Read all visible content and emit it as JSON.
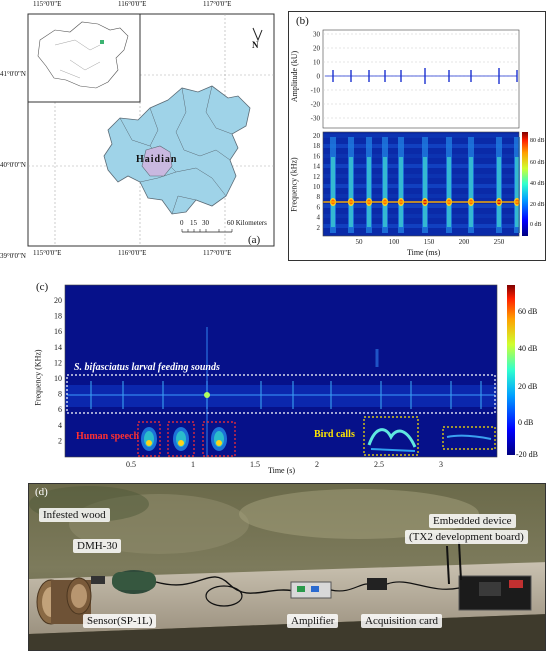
{
  "panel_a": {
    "label": "(a)",
    "lon_ticks": [
      "115°0'0\"E",
      "116°0'0\"E",
      "117°0'0\"E"
    ],
    "lat_ticks": [
      "41°0'0\"N",
      "40°0'0\"N",
      "39°0'0\"N"
    ],
    "district": "Haidian",
    "north": "N",
    "scale_numbers": [
      "0",
      "15",
      "30",
      "60 Kilometers"
    ],
    "colors": {
      "region": "#9fd3e8",
      "highlight": "#c9b8e0",
      "border": "#5a6a75"
    }
  },
  "panel_b": {
    "label": "(b)",
    "waveform_ylabel": "Amplitude (kU)",
    "waveform_yticks": [
      "30",
      "20",
      "10",
      "0",
      "-10",
      "-20",
      "-30"
    ],
    "spec_ylabel": "Frequency (kHz)",
    "spec_yticks": [
      "20",
      "18",
      "16",
      "14",
      "12",
      "10",
      "8",
      "6",
      "4",
      "2"
    ],
    "xlabel": "Time (ms)",
    "xticks": [
      "50",
      "100",
      "150",
      "200",
      "250"
    ],
    "colorbar_ticks": [
      "80 dB",
      "60 dB",
      "40 dB",
      "20 dB",
      "0 dB"
    ]
  },
  "panel_c": {
    "label": "(c)",
    "ylabel": "Frequency (KHz)",
    "yticks": [
      "20",
      "18",
      "16",
      "14",
      "12",
      "10",
      "8",
      "6",
      "4",
      "2"
    ],
    "xlabel": "Time (s)",
    "xticks": [
      "0.5",
      "1",
      "1.5",
      "2",
      "2.5",
      "3"
    ],
    "colorbar_ticks": [
      "60 dB",
      "40 dB",
      "20 dB",
      "0 dB",
      "-20 dB"
    ],
    "feeding_label": "S. bifasciatus larval feeding sounds",
    "speech_label": "Human speech",
    "bird_label": "Bird calls"
  },
  "panel_d": {
    "label": "(d)",
    "infested_wood": "Infested wood",
    "dmh": "DMH-30",
    "sensor": "Sensor(SP-1L)",
    "amplifier": "Amplifier",
    "acquisition": "Acquisition card",
    "embedded_line1": "Embedded device",
    "embedded_line2": "(TX2 development board)"
  }
}
